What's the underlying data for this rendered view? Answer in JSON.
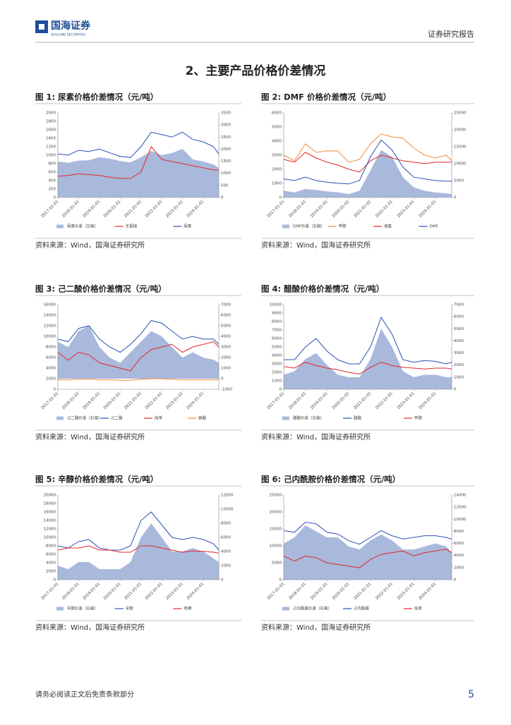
{
  "header": {
    "logo_cn": "国海证券",
    "logo_en": "SEALAND SECURITIES",
    "report_type": "证券研究报告"
  },
  "section_title": "2、主要产品价格价差情况",
  "chart_data": [
    {
      "type": "line",
      "title": "图 1: 尿素价格价差情况（元/吨）",
      "source": "资料来源：Wind，国海证券研究所",
      "x": [
        "2017-01-01",
        "2017-07-01",
        "2018-01-01",
        "2018-07-01",
        "2019-01-01",
        "2019-07-01",
        "2020-01-01",
        "2020-07-01",
        "2021-01-01",
        "2021-07-01",
        "2022-01-01",
        "2022-07-01",
        "2023-01-01",
        "2023-07-01",
        "2024-01-01",
        "2024-07-01",
        "2024-10-01"
      ],
      "xticks": [
        "2017-01-01",
        "2018-01-01",
        "2019-01-01",
        "2020-01-01",
        "2021-01-01",
        "2022-01-01",
        "2023-01-01",
        "2024-01-01"
      ],
      "ylim": [
        0,
        2000
      ],
      "yticks": [
        0,
        200,
        400,
        600,
        800,
        1000,
        1200,
        1400,
        1600,
        1800,
        2000
      ],
      "y2lim": [
        0,
        3500
      ],
      "y2ticks": [
        0,
        500,
        1000,
        1500,
        2000,
        2500,
        3000,
        3500
      ],
      "series": [
        {
          "name": "尿素价差（左轴）",
          "type": "area",
          "color": "#a9b9dc",
          "values": [
            850,
            820,
            870,
            880,
            950,
            920,
            860,
            830,
            950,
            1100,
            1000,
            1050,
            1150,
            900,
            850,
            780,
            700
          ]
        },
        {
          "name": "无烟煤",
          "type": "line",
          "color": "#e3262a",
          "values": [
            500,
            520,
            560,
            540,
            520,
            480,
            450,
            450,
            600,
            1200,
            900,
            850,
            800,
            750,
            700,
            650,
            650
          ]
        },
        {
          "name": "尿素",
          "type": "line",
          "color": "#2a4fb5",
          "axis": "y2",
          "values": [
            1800,
            1750,
            1950,
            1900,
            2000,
            1850,
            1700,
            1650,
            2100,
            2700,
            2600,
            2500,
            2700,
            2400,
            2300,
            2100,
            1800
          ]
        }
      ]
    },
    {
      "type": "line",
      "title": "图 2: DMF 价格价差情况（元/吨）",
      "source": "资料来源：Wind，国海证券研究所",
      "x": [
        "2017-01-01",
        "2017-07-01",
        "2018-01-01",
        "2018-07-01",
        "2019-01-01",
        "2019-07-01",
        "2020-01-01",
        "2020-07-01",
        "2021-01-01",
        "2021-07-01",
        "2022-01-01",
        "2022-07-01",
        "2023-01-01",
        "2023-07-01",
        "2024-01-01",
        "2024-07-01",
        "2024-10-01"
      ],
      "xticks": [
        "2017-01-01",
        "2018-01-01",
        "2019-01-01",
        "2020-01-01",
        "2021-01-01",
        "2022-01-01",
        "2023-01-01",
        "2024-01-01"
      ],
      "ylim": [
        0,
        6000
      ],
      "yticks": [
        0,
        1000,
        2000,
        3000,
        4000,
        5000,
        6000
      ],
      "y2lim": [
        0,
        25000
      ],
      "y2ticks": [
        0,
        5000,
        10000,
        15000,
        20000,
        25000
      ],
      "series": [
        {
          "name": "DMF价差（右轴）",
          "type": "area",
          "color": "#a9b9dc",
          "axis": "y2",
          "values": [
            2000,
            1500,
            2500,
            2200,
            1800,
            1500,
            1000,
            2000,
            8000,
            14000,
            12000,
            6000,
            3000,
            2000,
            1500,
            1200,
            1000
          ]
        },
        {
          "name": "甲醇",
          "type": "line",
          "color": "#ee8a3a",
          "values": [
            3000,
            2600,
            3800,
            3200,
            3300,
            3300,
            2500,
            2700,
            3800,
            4500,
            4300,
            4200,
            3500,
            3000,
            2800,
            3000,
            2600
          ]
        },
        {
          "name": "液氨",
          "type": "line",
          "color": "#e3262a",
          "values": [
            2700,
            2500,
            3200,
            2800,
            2500,
            2300,
            2000,
            1800,
            2600,
            3000,
            2800,
            2600,
            2500,
            2400,
            2500,
            2500,
            2500
          ]
        },
        {
          "name": "DMF",
          "type": "line",
          "color": "#2a4fb5",
          "axis": "y2",
          "values": [
            5500,
            5000,
            6000,
            5000,
            4500,
            4200,
            4000,
            5000,
            12000,
            17000,
            14000,
            9000,
            6000,
            5500,
            5000,
            4800,
            4800
          ]
        }
      ]
    },
    {
      "type": "line",
      "title": "图 3: 己二酸价格价差情况（元/吨）",
      "source": "资料来源：Wind，国海证券研究所",
      "x": [
        "2017-01-01",
        "2017-07-01",
        "2018-01-01",
        "2018-07-01",
        "2019-01-01",
        "2019-07-01",
        "2020-01-01",
        "2020-07-01",
        "2021-01-01",
        "2021-07-01",
        "2022-01-01",
        "2022-07-01",
        "2023-01-01",
        "2023-07-01",
        "2024-01-01",
        "2024-07-01",
        "2024-10-01"
      ],
      "xticks": [
        "2017-01-01",
        "2018-01-01",
        "2019-01-01",
        "2020-01-01",
        "2021-01-01",
        "2022-01-01",
        "2023-01-01",
        "2024-01-01"
      ],
      "ylim": [
        0,
        16000
      ],
      "yticks": [
        0,
        2000,
        4000,
        6000,
        8000,
        10000,
        12000,
        14000,
        16000
      ],
      "y2lim": [
        -1000,
        7000
      ],
      "y2ticks": [
        -1000,
        0,
        1000,
        2000,
        3000,
        4000,
        5000,
        6000,
        7000
      ],
      "series": [
        {
          "name": "己二酸价差（右轴）",
          "type": "area",
          "color": "#a9b9dc",
          "axis": "y2",
          "values": [
            3500,
            3000,
            4500,
            5000,
            3000,
            2000,
            1500,
            2500,
            3500,
            4500,
            4000,
            3000,
            2000,
            2500,
            2000,
            1800,
            1500
          ]
        },
        {
          "name": "己二酸",
          "type": "line",
          "color": "#2a4fb5",
          "values": [
            9500,
            9000,
            11500,
            12000,
            9500,
            8000,
            7000,
            8500,
            10500,
            13000,
            12500,
            11000,
            9500,
            10000,
            9500,
            9500,
            8500
          ]
        },
        {
          "name": "纯苯",
          "type": "line",
          "color": "#e3262a",
          "values": [
            7000,
            5500,
            7000,
            6500,
            5000,
            4500,
            4000,
            3500,
            6000,
            7500,
            8000,
            8500,
            7000,
            8000,
            8500,
            9000,
            8000
          ]
        },
        {
          "name": "硝酸",
          "type": "line",
          "color": "#ee8a3a",
          "values": [
            1800,
            1800,
            1900,
            1900,
            1800,
            1800,
            1700,
            1700,
            1900,
            2000,
            2000,
            1900,
            1800,
            1800,
            1800,
            1800,
            1800
          ]
        }
      ]
    },
    {
      "type": "line",
      "title": "图 4: 醋酸价格价差情况（元/吨）",
      "source": "资料来源：Wind，国海证券研究所",
      "x": [
        "2017-01-01",
        "2017-07-01",
        "2018-01-01",
        "2018-07-01",
        "2019-01-01",
        "2019-07-01",
        "2020-01-01",
        "2020-07-01",
        "2021-01-01",
        "2021-07-01",
        "2022-01-01",
        "2022-07-01",
        "2023-01-01",
        "2023-07-01",
        "2024-01-01",
        "2024-07-01",
        "2024-10-01"
      ],
      "xticks": [
        "2017-01-01",
        "2018-01-01",
        "2019-01-01",
        "2020-01-01",
        "2021-01-01",
        "2022-01-01",
        "2023-01-01",
        "2024-01-01"
      ],
      "ylim": [
        0,
        10000
      ],
      "yticks": [
        0,
        1000,
        2000,
        3000,
        4000,
        5000,
        6000,
        7000,
        8000,
        9000,
        10000
      ],
      "y2lim": [
        0,
        7000
      ],
      "y2ticks": [
        0,
        1000,
        2000,
        3000,
        4000,
        5000,
        6000,
        7000
      ],
      "series": [
        {
          "name": "醋酸价差（右轴）",
          "type": "area",
          "color": "#a9b9dc",
          "axis": "y2",
          "values": [
            1200,
            1500,
            2500,
            3000,
            2000,
            1200,
            1000,
            1000,
            2500,
            5000,
            3500,
            1500,
            1000,
            1200,
            1200,
            1000,
            1000
          ]
        },
        {
          "name": "醋酸",
          "type": "line",
          "color": "#2a4fb5",
          "values": [
            3500,
            3500,
            5000,
            6000,
            4500,
            3500,
            3000,
            3000,
            5000,
            8500,
            6500,
            3500,
            3200,
            3400,
            3300,
            3000,
            3200
          ]
        },
        {
          "name": "甲醇",
          "type": "line",
          "color": "#e3262a",
          "values": [
            2700,
            2500,
            3200,
            2800,
            2500,
            2300,
            2000,
            1800,
            2600,
            3200,
            2800,
            2600,
            2500,
            2400,
            2500,
            2500,
            2400
          ]
        }
      ]
    },
    {
      "type": "line",
      "title": "图 5: 辛醇价格价差情况（元/吨）",
      "source": "资料来源：Wind，国海证券研究所",
      "x": [
        "2017-01-01",
        "2017-07-01",
        "2018-01-01",
        "2018-07-01",
        "2019-01-01",
        "2019-07-01",
        "2020-01-01",
        "2020-07-01",
        "2021-01-01",
        "2021-07-01",
        "2022-01-01",
        "2022-07-01",
        "2023-01-01",
        "2023-07-01",
        "2024-01-01",
        "2024-07-01",
        "2024-10-01"
      ],
      "xticks": [
        "2017-01-01",
        "2018-01-01",
        "2019-01-01",
        "2020-01-01",
        "2021-01-01",
        "2022-01-01",
        "2023-01-01",
        "2024-01-01"
      ],
      "ylim": [
        0,
        20000
      ],
      "yticks": [
        0,
        2000,
        4000,
        6000,
        8000,
        10000,
        12000,
        14000,
        16000,
        18000,
        20000
      ],
      "y2lim": [
        0,
        12000
      ],
      "y2ticks": [
        0,
        2000,
        4000,
        6000,
        8000,
        10000,
        12000
      ],
      "series": [
        {
          "name": "辛醇价差（右轴）",
          "type": "area",
          "color": "#a9b9dc",
          "axis": "y2",
          "values": [
            2000,
            1500,
            2500,
            2500,
            1500,
            1500,
            1500,
            2500,
            6000,
            8000,
            6000,
            4000,
            4000,
            4500,
            4000,
            3000,
            2500
          ]
        },
        {
          "name": "辛醇",
          "type": "line",
          "color": "#2a4fb5",
          "values": [
            8000,
            7500,
            9000,
            9500,
            7500,
            7000,
            7000,
            8000,
            14000,
            16000,
            13000,
            10000,
            9500,
            10000,
            9500,
            8500,
            7000
          ]
        },
        {
          "name": "丙烯",
          "type": "line",
          "color": "#e3262a",
          "values": [
            7000,
            7500,
            7500,
            8000,
            7000,
            7000,
            6500,
            6500,
            8000,
            8000,
            7500,
            7000,
            6500,
            6800,
            6700,
            6500,
            6300
          ]
        }
      ]
    },
    {
      "type": "line",
      "title": "图 6: 己内酰胺价格价差情况（元/吨）",
      "source": "资料来源：Wind，国海证券研究所",
      "x": [
        "2017-01-01",
        "2017-07-01",
        "2018-01-01",
        "2018-07-01",
        "2019-01-01",
        "2019-07-01",
        "2020-01-01",
        "2020-07-01",
        "2021-01-01",
        "2021-07-01",
        "2022-01-01",
        "2022-07-01",
        "2023-01-01",
        "2023-07-01",
        "2024-01-01",
        "2024-07-01",
        "2024-10-01"
      ],
      "xticks": [
        "2017-01-01",
        "2018-01-01",
        "2019-01-01",
        "2020-01-01",
        "2021-01-01",
        "2022-01-01",
        "2023-01-01",
        "2024-01-01"
      ],
      "ylim": [
        0,
        25000
      ],
      "yticks": [
        0,
        5000,
        10000,
        15000,
        20000,
        25000
      ],
      "y2lim": [
        0,
        14000
      ],
      "y2ticks": [
        0,
        2000,
        4000,
        6000,
        8000,
        10000,
        12000,
        14000
      ],
      "series": [
        {
          "name": "己内酰胺价差（右轴）",
          "type": "area",
          "color": "#a9b9dc",
          "axis": "y2",
          "values": [
            6000,
            7000,
            9000,
            8000,
            7000,
            7000,
            5500,
            5000,
            6500,
            7500,
            6500,
            5000,
            5000,
            5500,
            6000,
            5500,
            4500
          ]
        },
        {
          "name": "己内酰胺",
          "type": "line",
          "color": "#2a4fb5",
          "values": [
            14500,
            14000,
            17000,
            16500,
            14000,
            13500,
            11500,
            10500,
            12500,
            14500,
            13000,
            12000,
            12500,
            13000,
            13000,
            12500,
            12000
          ]
        },
        {
          "name": "纯苯",
          "type": "line",
          "color": "#e3262a",
          "values": [
            7000,
            5500,
            7000,
            6500,
            5000,
            4500,
            4000,
            3500,
            6000,
            7500,
            8000,
            8500,
            7000,
            8000,
            8500,
            9000,
            8000
          ]
        }
      ]
    }
  ],
  "footer": {
    "disclaimer": "请务必阅读正文后免责条款部分",
    "page_number": 5
  }
}
